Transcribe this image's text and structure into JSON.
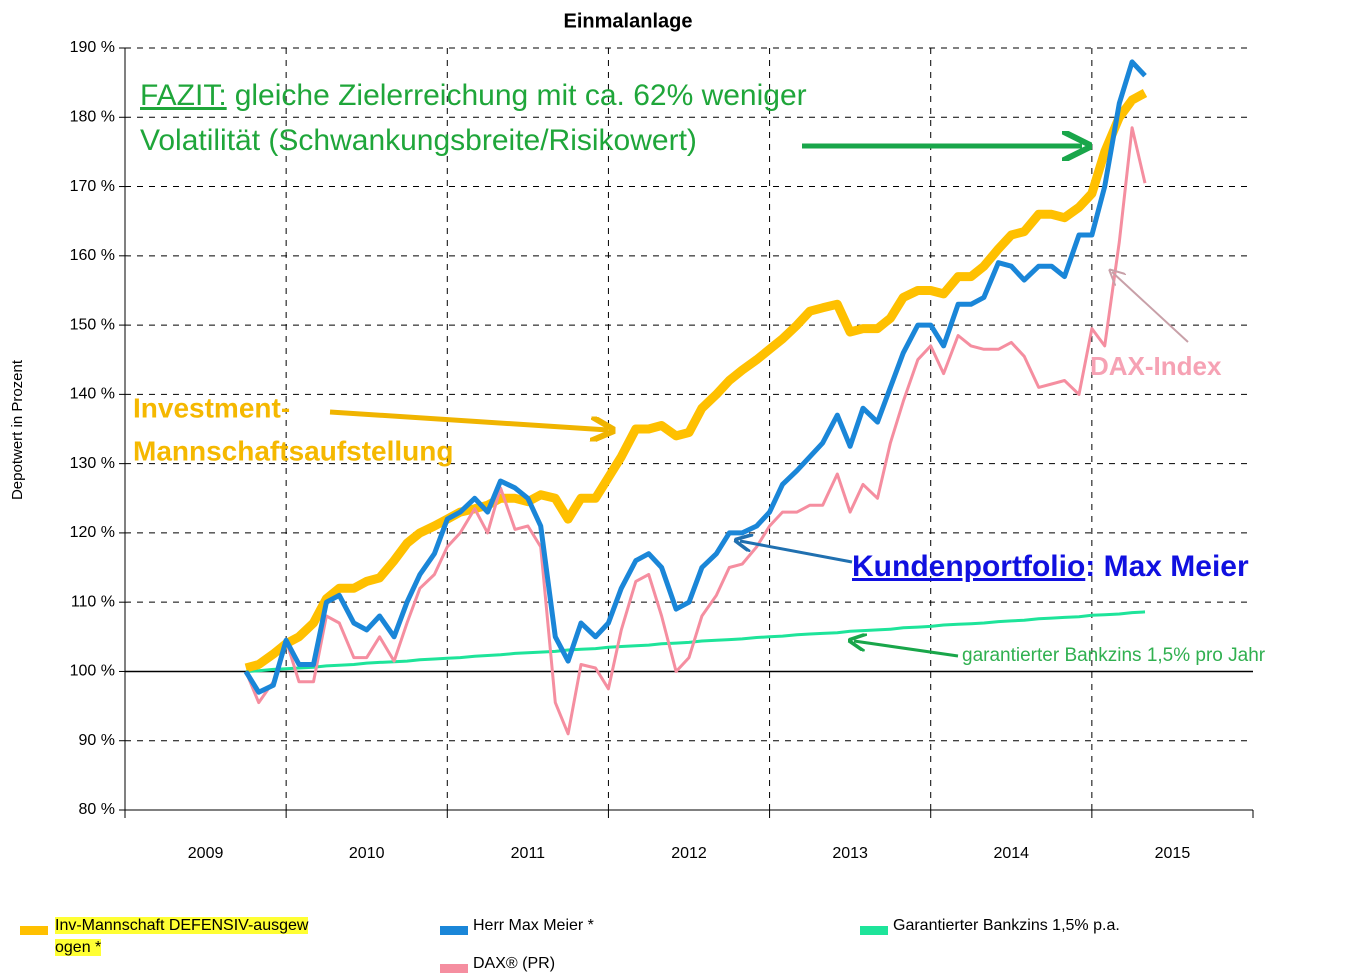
{
  "chart_data": {
    "type": "line",
    "title": "Einmalanlage",
    "ylabel": "Depotwert in Prozent",
    "x": [
      2009.75,
      2009.83,
      2009.92,
      2010,
      2010.08,
      2010.17,
      2010.25,
      2010.33,
      2010.42,
      2010.5,
      2010.58,
      2010.67,
      2010.75,
      2010.83,
      2010.92,
      2011,
      2011.08,
      2011.17,
      2011.25,
      2011.33,
      2011.42,
      2011.5,
      2011.58,
      2011.67,
      2011.75,
      2011.83,
      2011.92,
      2012,
      2012.08,
      2012.17,
      2012.25,
      2012.33,
      2012.42,
      2012.5,
      2012.58,
      2012.67,
      2012.75,
      2012.83,
      2012.92,
      2013,
      2013.08,
      2013.17,
      2013.25,
      2013.33,
      2013.42,
      2013.5,
      2013.58,
      2013.67,
      2013.75,
      2013.83,
      2013.92,
      2014,
      2014.08,
      2014.17,
      2014.25,
      2014.33,
      2014.42,
      2014.5,
      2014.58,
      2014.67,
      2014.75,
      2014.83,
      2014.92,
      2015,
      2015.08,
      2015.17,
      2015.25,
      2015.33
    ],
    "xlim": [
      2009,
      2016
    ],
    "xticks": [
      {
        "value": 2009.5,
        "label": "2009"
      },
      {
        "value": 2010.5,
        "label": "2010"
      },
      {
        "value": 2011.5,
        "label": "2011"
      },
      {
        "value": 2012.5,
        "label": "2012"
      },
      {
        "value": 2013.5,
        "label": "2013"
      },
      {
        "value": 2014.5,
        "label": "2014"
      },
      {
        "value": 2015.5,
        "label": "2015"
      }
    ],
    "xgrid": [
      2009,
      2010,
      2011,
      2012,
      2013,
      2014,
      2015,
      2016
    ],
    "ylim": [
      80,
      190
    ],
    "yticks": [
      {
        "value": 80,
        "label": "80 %"
      },
      {
        "value": 90,
        "label": "90 %"
      },
      {
        "value": 100,
        "label": "100 %"
      },
      {
        "value": 110,
        "label": "110 %"
      },
      {
        "value": 120,
        "label": "120 %"
      },
      {
        "value": 130,
        "label": "130 %"
      },
      {
        "value": 140,
        "label": "140 %"
      },
      {
        "value": 150,
        "label": "150 %"
      },
      {
        "value": 160,
        "label": "160 %"
      },
      {
        "value": 170,
        "label": "170 %"
      },
      {
        "value": 180,
        "label": "180 %"
      },
      {
        "value": 190,
        "label": "190 %"
      }
    ],
    "grid": true,
    "series": [
      {
        "name": "Garantierter Bankzins 1,5% p.a.",
        "color": "#1ee49a",
        "width": 3,
        "values": [
          100.0,
          100.1,
          100.3,
          100.4,
          100.5,
          100.6,
          100.8,
          100.9,
          101.0,
          101.2,
          101.3,
          101.4,
          101.5,
          101.7,
          101.8,
          101.9,
          102.0,
          102.2,
          102.3,
          102.4,
          102.6,
          102.7,
          102.8,
          102.9,
          103.1,
          103.2,
          103.3,
          103.5,
          103.6,
          103.7,
          103.8,
          104.0,
          104.1,
          104.2,
          104.4,
          104.5,
          104.6,
          104.7,
          104.9,
          105.0,
          105.1,
          105.3,
          105.4,
          105.5,
          105.6,
          105.8,
          105.9,
          106.0,
          106.1,
          106.3,
          106.4,
          106.5,
          106.7,
          106.8,
          106.9,
          107.0,
          107.2,
          107.3,
          107.4,
          107.6,
          107.7,
          107.8,
          107.9,
          108.1,
          108.2,
          108.3,
          108.5,
          108.6
        ]
      },
      {
        "name": "Inv-Mannschaft DEFENSIV-ausgew ogen *",
        "color": "#ffc000",
        "width": 9,
        "values": [
          100.5,
          101,
          102.5,
          104,
          105,
          107,
          110.5,
          112,
          112,
          113,
          113.5,
          116,
          118.5,
          120,
          121,
          122,
          123,
          123.5,
          124,
          125,
          125,
          124.5,
          125.5,
          125,
          122,
          125,
          125,
          128,
          131,
          135,
          135,
          135.5,
          134,
          134.5,
          138,
          140,
          142,
          143.5,
          145,
          146.5,
          148,
          150,
          152,
          152.5,
          153,
          149,
          149.5,
          149.5,
          151,
          154,
          155,
          155,
          154.5,
          157,
          157,
          158.5,
          161,
          163,
          163.5,
          166,
          166,
          165.5,
          167,
          169,
          175,
          180,
          182.5,
          183.5
        ]
      },
      {
        "name": "DAX® (PR)",
        "color": "#f58ea0",
        "width": 3,
        "values": [
          100,
          95.5,
          98.5,
          104.5,
          98.5,
          98.5,
          108,
          107,
          102,
          102,
          105,
          101.5,
          107,
          112,
          114,
          118,
          120,
          123.5,
          120,
          126.5,
          120.5,
          121,
          118,
          95.5,
          91,
          101,
          100.5,
          97.5,
          106,
          113,
          114,
          108,
          100,
          102,
          108,
          111,
          115,
          115.5,
          118,
          121,
          123,
          123,
          124,
          124,
          128.5,
          123,
          127,
          125,
          133,
          139,
          145,
          147,
          143,
          148.5,
          147,
          146.5,
          146.5,
          147.5,
          145.5,
          141,
          141.5,
          142,
          140,
          149.5,
          147,
          162,
          178.5,
          170.5
        ]
      },
      {
        "name": "Herr Max Meier *",
        "color": "#1a86d8",
        "width": 5,
        "values": [
          100,
          97,
          98,
          104.5,
          101,
          101,
          110,
          111,
          107,
          106,
          108,
          105,
          110,
          114,
          117,
          122,
          123,
          125,
          123,
          127.5,
          126.5,
          125,
          121,
          105,
          101.5,
          107,
          105,
          107,
          112,
          116,
          117,
          115,
          109,
          110,
          115,
          117,
          120,
          120,
          121,
          123,
          127,
          129,
          131,
          133,
          137,
          132.5,
          138,
          136,
          141,
          146,
          150,
          150,
          147,
          153,
          153,
          154,
          159,
          158.5,
          156.5,
          158.5,
          158.5,
          157,
          163,
          163,
          170,
          182,
          188,
          186
        ]
      }
    ],
    "annotations": {
      "fazit_head": "FAZIT:",
      "fazit_line1": "gleiche Zielerreichung mit ca. 62% weniger",
      "fazit_line2": "Volatilität (Schwankungsbreite/Risikowert)",
      "investment_1": "Investment-",
      "investment_2": "Mannschaftsaufstellung",
      "kunden_head": "Kundenportfolio",
      "kunden_tail": ": Max Meier",
      "dax": "DAX-Index",
      "bankzins": "garantierter Bankzins 1,5% pro Jahr"
    }
  }
}
